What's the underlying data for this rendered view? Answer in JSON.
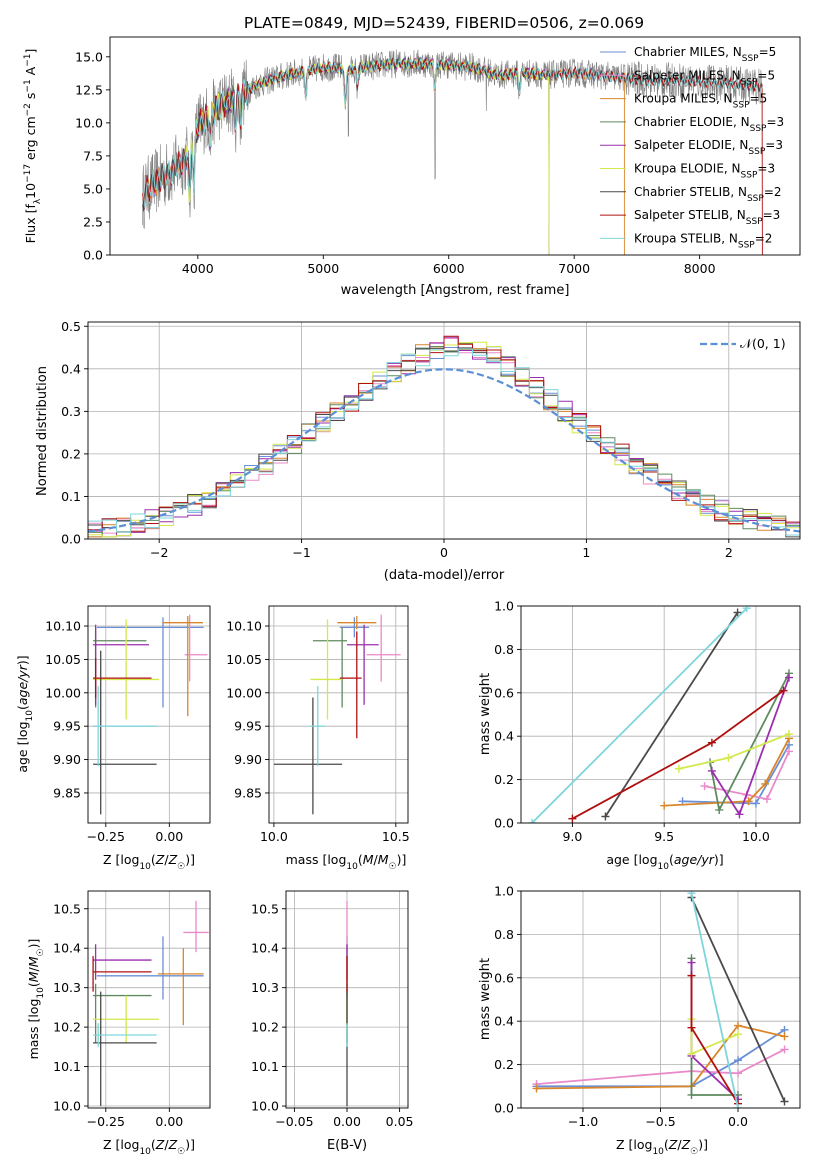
{
  "figure": {
    "title": "PLATE=0849, MJD=52439, FIBERID=0506, z=0.069"
  },
  "colors": {
    "Chabrier MILES": "#6a8fd6",
    "Salpeter MILES": "#e88ac9",
    "Kroupa MILES": "#d9862a",
    "Chabrier ELODIE": "#5f8a5f",
    "Salpeter ELODIE": "#9b2fae",
    "Kroupa ELODIE": "#d4e84a",
    "Chabrier STELIB": "#4a4a4a",
    "Salpeter STELIB": "#b01010",
    "Kroupa STELIB": "#7ed6dc",
    "data": "#808080",
    "gaussian": "#5b8fd6"
  },
  "chart_data": [
    {
      "id": "spectrum",
      "type": "line",
      "title": "PLATE=0849, MJD=52439, FIBERID=0506, z=0.069",
      "xlabel": "wavelength [Angstrom, rest frame]",
      "ylabel": "Flux [f_λ 10^-17 erg cm^-2 s^-1 A^-1]",
      "xlim": [
        3300,
        8800
      ],
      "ylim": [
        0,
        16.5
      ],
      "xticks": [
        4000,
        5000,
        6000,
        7000,
        8000
      ],
      "yticks": [
        0.0,
        2.5,
        5.0,
        7.5,
        10.0,
        12.5,
        15.0
      ],
      "grid": false,
      "legend_position": "top-right",
      "continuum": {
        "x": [
          3550,
          3600,
          3700,
          3800,
          3900,
          4000,
          4100,
          4200,
          4300,
          4400,
          4500,
          4600,
          4700,
          4800,
          4900,
          5000,
          5100,
          5200,
          5300,
          5400,
          5500,
          5600,
          5800,
          6000,
          6200,
          6400,
          6600,
          6800,
          7000,
          7200,
          7400,
          7600,
          7800,
          8000,
          8200,
          8400,
          8500
        ],
        "y": [
          4.2,
          5.0,
          5.8,
          6.4,
          7.2,
          9.8,
          10.6,
          11.4,
          11.8,
          12.5,
          13.0,
          13.3,
          13.6,
          13.8,
          14.0,
          14.2,
          14.2,
          14.0,
          14.2,
          14.3,
          14.4,
          14.5,
          14.5,
          14.4,
          14.2,
          13.6,
          13.8,
          13.6,
          13.8,
          13.6,
          13.4,
          13.2,
          13.2,
          13.1,
          13.0,
          12.8,
          12.8
        ]
      },
      "series": [
        {
          "name": "Chabrier MILES",
          "label": "Chabrier MILES, N_SSP=5"
        },
        {
          "name": "Salpeter MILES",
          "label": "Salpeter MILES, N_SSP=5"
        },
        {
          "name": "Kroupa MILES",
          "label": "Kroupa MILES, N_SSP=5"
        },
        {
          "name": "Chabrier ELODIE",
          "label": "Chabrier ELODIE, N_SSP=3"
        },
        {
          "name": "Salpeter ELODIE",
          "label": "Salpeter ELODIE, N_SSP=3"
        },
        {
          "name": "Kroupa ELODIE",
          "label": "Kroupa ELODIE, N_SSP=3"
        },
        {
          "name": "Chabrier STELIB",
          "label": "Chabrier STELIB, N_SSP=2"
        },
        {
          "name": "Salpeter STELIB",
          "label": "Salpeter STELIB, N_SSP=3"
        },
        {
          "name": "Kroupa STELIB",
          "label": "Kroupa STELIB, N_SSP=2"
        }
      ]
    },
    {
      "id": "residuals",
      "type": "step",
      "xlabel": "(data-model)/error",
      "ylabel": "Normed distribution",
      "xlim": [
        -2.5,
        2.5
      ],
      "ylim": [
        0,
        0.51
      ],
      "xticks": [
        -2,
        -1,
        0,
        1,
        2
      ],
      "yticks": [
        0.0,
        0.1,
        0.2,
        0.3,
        0.4,
        0.5
      ],
      "grid": true,
      "legend_position": "top-right",
      "gaussian_label": "𝒩(0, 1)",
      "bin_width": 0.1,
      "bin_start": -2.5
    },
    {
      "id": "age-vs-Z",
      "type": "errorbar",
      "xlabel": "Z [log10(Z/Z☉)]",
      "ylabel": "age [log10(age/yr)]",
      "xlim": [
        -0.32,
        0.16
      ],
      "ylim": [
        9.805,
        10.13
      ],
      "xticks": [
        -0.25,
        0.0
      ],
      "yticks": [
        9.85,
        9.9,
        9.95,
        10.0,
        10.05,
        10.1
      ],
      "grid": true,
      "points": [
        {
          "series": "Chabrier MILES",
          "x": -0.025,
          "xerr": [
            0.26,
            0.16
          ],
          "y": 10.098,
          "yerr": [
            0.12,
            0.015
          ]
        },
        {
          "series": "Salpeter MILES",
          "x": 0.08,
          "xerr": [
            0.02,
            0.07
          ],
          "y": 10.057,
          "yerr": [
            0.04,
            0.06
          ]
        },
        {
          "series": "Kroupa MILES",
          "x": 0.0725,
          "xerr": [
            0.1,
            0.06
          ],
          "y": 10.105,
          "yerr": [
            0.14,
            0.01
          ]
        },
        {
          "series": "Chabrier ELODIE",
          "x": -0.29,
          "xerr": [
            0.01,
            0.2
          ],
          "y": 10.078,
          "yerr": [
            0.1,
            0.02
          ]
        },
        {
          "series": "Salpeter ELODIE",
          "x": -0.29,
          "xerr": [
            0.01,
            0.21
          ],
          "y": 10.072,
          "yerr": [
            0.09,
            0.03
          ]
        },
        {
          "series": "Kroupa ELODIE",
          "x": -0.17,
          "xerr": [
            0.13,
            0.13
          ],
          "y": 10.02,
          "yerr": [
            0.06,
            0.09
          ]
        },
        {
          "series": "Chabrier STELIB",
          "x": -0.27,
          "xerr": [
            0.03,
            0.22
          ],
          "y": 9.893,
          "yerr": [
            0.075,
            0.17
          ]
        },
        {
          "series": "Salpeter STELIB",
          "x": -0.29,
          "xerr": [
            0.01,
            0.22
          ],
          "y": 10.022,
          "yerr": [
            0.03,
            0.03
          ]
        },
        {
          "series": "Kroupa STELIB",
          "x": -0.28,
          "xerr": [
            0.02,
            0.23
          ],
          "y": 9.95,
          "yerr": [
            0.06,
            0.06
          ]
        }
      ]
    },
    {
      "id": "age-vs-mass",
      "type": "errorbar",
      "xlabel": "mass [log10(M/M☉)]",
      "ylabel": "",
      "xlim": [
        9.98,
        10.55
      ],
      "ylim": [
        9.805,
        10.13
      ],
      "xticks": [
        10.0,
        10.5
      ],
      "yticks": [
        9.85,
        9.9,
        9.95,
        10.0,
        10.05,
        10.1
      ],
      "grid": true,
      "points": [
        {
          "series": "Chabrier MILES",
          "x": 10.33,
          "xerr": [
            0.06,
            0.06
          ],
          "y": 10.098,
          "yerr": [
            0.015,
            0.015
          ]
        },
        {
          "series": "Salpeter MILES",
          "x": 10.44,
          "xerr": [
            0.06,
            0.08
          ],
          "y": 10.057,
          "yerr": [
            0.04,
            0.06
          ]
        },
        {
          "series": "Kroupa MILES",
          "x": 10.34,
          "xerr": [
            0.08,
            0.08
          ],
          "y": 10.105,
          "yerr": [
            0.01,
            0.01
          ]
        },
        {
          "series": "Chabrier ELODIE",
          "x": 10.28,
          "xerr": [
            0.12,
            0.02
          ],
          "y": 10.078,
          "yerr": [
            0.1,
            0.02
          ]
        },
        {
          "series": "Salpeter ELODIE",
          "x": 10.37,
          "xerr": [
            0.07,
            0.06
          ],
          "y": 10.072,
          "yerr": [
            0.09,
            0.03
          ]
        },
        {
          "series": "Kroupa ELODIE",
          "x": 10.22,
          "xerr": [
            0.07,
            0.06
          ],
          "y": 10.02,
          "yerr": [
            0.06,
            0.09
          ]
        },
        {
          "series": "Chabrier STELIB",
          "x": 10.16,
          "xerr": [
            0.16,
            0.12
          ],
          "y": 9.893,
          "yerr": [
            0.075,
            0.1
          ]
        },
        {
          "series": "Salpeter STELIB",
          "x": 10.34,
          "xerr": [
            0.07,
            0.02
          ],
          "y": 10.022,
          "yerr": [
            0.09,
            0.07
          ]
        },
        {
          "series": "Kroupa STELIB",
          "x": 10.18,
          "xerr": [
            0.03,
            0.03
          ],
          "y": 9.95,
          "yerr": [
            0.06,
            0.06
          ]
        }
      ]
    },
    {
      "id": "mass-weight-vs-age",
      "type": "line",
      "xlabel": "age [log10(age/yr)]",
      "ylabel": "mass weight",
      "xlim": [
        8.72,
        10.24
      ],
      "ylim": [
        0,
        1.0
      ],
      "xticks": [
        9.0,
        9.5,
        10.0
      ],
      "yticks": [
        0.0,
        0.2,
        0.4,
        0.6,
        0.8,
        1.0
      ],
      "grid": true,
      "series": [
        {
          "name": "Chabrier MILES",
          "x": [
            9.6,
            10.0,
            10.18
          ],
          "y": [
            0.1,
            0.09,
            0.36
          ]
        },
        {
          "name": "Salpeter MILES",
          "x": [
            9.72,
            9.95,
            10.06,
            10.18
          ],
          "y": [
            0.17,
            0.13,
            0.11,
            0.33
          ]
        },
        {
          "name": "Kroupa MILES",
          "x": [
            9.5,
            9.96,
            10.05,
            10.18
          ],
          "y": [
            0.08,
            0.1,
            0.18,
            0.39
          ]
        },
        {
          "name": "Chabrier ELODIE",
          "x": [
            9.75,
            9.8,
            10.18
          ],
          "y": [
            0.28,
            0.06,
            0.69
          ]
        },
        {
          "name": "Salpeter ELODIE",
          "x": [
            9.76,
            9.91,
            10.18
          ],
          "y": [
            0.24,
            0.04,
            0.67
          ]
        },
        {
          "name": "Kroupa ELODIE",
          "x": [
            9.58,
            9.85,
            10.18
          ],
          "y": [
            0.25,
            0.3,
            0.41
          ]
        },
        {
          "name": "Chabrier STELIB",
          "x": [
            9.18,
            9.9
          ],
          "y": [
            0.03,
            0.97
          ]
        },
        {
          "name": "Salpeter STELIB",
          "x": [
            9.0,
            9.76,
            10.15
          ],
          "y": [
            0.02,
            0.37,
            0.61
          ]
        },
        {
          "name": "Kroupa STELIB",
          "x": [
            8.78,
            9.95
          ],
          "y": [
            0.0,
            0.99
          ]
        }
      ]
    },
    {
      "id": "mass-vs-Z",
      "type": "errorbar",
      "xlabel": "Z [log10(Z/Z☉)]",
      "ylabel": "mass [log10(M/M☉)]",
      "xlim": [
        -0.32,
        0.16
      ],
      "ylim": [
        9.995,
        10.545
      ],
      "xticks": [
        -0.25,
        0.0
      ],
      "yticks": [
        10.0,
        10.1,
        10.2,
        10.3,
        10.4,
        10.5
      ],
      "grid": true,
      "points": [
        {
          "series": "Chabrier MILES",
          "x": -0.025,
          "xerr": [
            0.26,
            0.16
          ],
          "y": 10.33,
          "yerr": [
            0.06,
            0.1
          ]
        },
        {
          "series": "Salpeter MILES",
          "x": 0.105,
          "xerr": [
            0.05,
            0.05
          ],
          "y": 10.44,
          "yerr": [
            0.05,
            0.08
          ]
        },
        {
          "series": "Kroupa MILES",
          "x": 0.055,
          "xerr": [
            0.1,
            0.08
          ],
          "y": 10.335,
          "yerr": [
            0.13,
            0.065
          ]
        },
        {
          "series": "Chabrier ELODIE",
          "x": -0.29,
          "xerr": [
            0.01,
            0.22
          ],
          "y": 10.28,
          "yerr": [
            0.12,
            0.03
          ]
        },
        {
          "series": "Salpeter ELODIE",
          "x": -0.29,
          "xerr": [
            0.01,
            0.22
          ],
          "y": 10.37,
          "yerr": [
            0.05,
            0.04
          ]
        },
        {
          "series": "Kroupa ELODIE",
          "x": -0.17,
          "xerr": [
            0.13,
            0.13
          ],
          "y": 10.22,
          "yerr": [
            0.06,
            0.06
          ]
        },
        {
          "series": "Chabrier STELIB",
          "x": -0.27,
          "xerr": [
            0.03,
            0.22
          ],
          "y": 10.16,
          "yerr": [
            0.16,
            0.13
          ]
        },
        {
          "series": "Salpeter STELIB",
          "x": -0.3,
          "xerr": [
            0.0,
            0.23
          ],
          "y": 10.34,
          "yerr": [
            0.05,
            0.04
          ]
        },
        {
          "series": "Kroupa STELIB",
          "x": -0.28,
          "xerr": [
            0.02,
            0.23
          ],
          "y": 10.18,
          "yerr": [
            0.03,
            0.03
          ]
        }
      ]
    },
    {
      "id": "mass-vs-EBV",
      "type": "errorbar",
      "xlabel": "E(B-V)",
      "ylabel": "",
      "xlim": [
        -0.058,
        0.058
      ],
      "ylim": [
        9.995,
        10.545
      ],
      "xticks": [
        -0.05,
        0.0,
        0.05
      ],
      "yticks": [
        10.0,
        10.1,
        10.2,
        10.3,
        10.4,
        10.5
      ],
      "grid": true,
      "points": [
        {
          "series": "Chabrier MILES",
          "x": 0.0,
          "xerr": [
            0,
            0
          ],
          "y": 10.33,
          "yerr": [
            0.06,
            0.1
          ]
        },
        {
          "series": "Salpeter MILES",
          "x": 0.0,
          "xerr": [
            0,
            0
          ],
          "y": 10.44,
          "yerr": [
            0.05,
            0.08
          ]
        },
        {
          "series": "Kroupa MILES",
          "x": 0.0,
          "xerr": [
            0,
            0
          ],
          "y": 10.335,
          "yerr": [
            0.13,
            0.065
          ]
        },
        {
          "series": "Chabrier ELODIE",
          "x": 0.0,
          "xerr": [
            0,
            0
          ],
          "y": 10.28,
          "yerr": [
            0.12,
            0.03
          ]
        },
        {
          "series": "Salpeter ELODIE",
          "x": 0.0,
          "xerr": [
            0,
            0
          ],
          "y": 10.37,
          "yerr": [
            0.05,
            0.04
          ]
        },
        {
          "series": "Kroupa ELODIE",
          "x": 0.0,
          "xerr": [
            0,
            0
          ],
          "y": 10.22,
          "yerr": [
            0.06,
            0.06
          ]
        },
        {
          "series": "Chabrier STELIB",
          "x": 0.0,
          "xerr": [
            0,
            0
          ],
          "y": 10.16,
          "yerr": [
            0.16,
            0.13
          ]
        },
        {
          "series": "Salpeter STELIB",
          "x": 0.0,
          "xerr": [
            0,
            0
          ],
          "y": 10.34,
          "yerr": [
            0.05,
            0.04
          ]
        },
        {
          "series": "Kroupa STELIB",
          "x": 0.0,
          "xerr": [
            0,
            0
          ],
          "y": 10.18,
          "yerr": [
            0.03,
            0.03
          ]
        }
      ]
    },
    {
      "id": "mass-weight-vs-Z",
      "type": "line",
      "xlabel": "Z [log10(Z/Z☉)]",
      "ylabel": "mass weight",
      "xlim": [
        -1.4,
        0.4
      ],
      "ylim": [
        0,
        1.0
      ],
      "xticks": [
        -1.0,
        -0.5,
        0.0
      ],
      "yticks": [
        0.0,
        0.2,
        0.4,
        0.6,
        0.8,
        1.0
      ],
      "grid": true,
      "series": [
        {
          "name": "Chabrier MILES",
          "x": [
            -1.3,
            -0.3,
            0.0,
            0.3
          ],
          "y": [
            0.1,
            0.1,
            0.22,
            0.36
          ]
        },
        {
          "name": "Salpeter MILES",
          "x": [
            -1.3,
            -0.3,
            0.0,
            0.3
          ],
          "y": [
            0.11,
            0.17,
            0.16,
            0.27
          ]
        },
        {
          "name": "Kroupa MILES",
          "x": [
            -1.3,
            -0.3,
            0.0,
            0.3
          ],
          "y": [
            0.09,
            0.1,
            0.38,
            0.33
          ]
        },
        {
          "name": "Chabrier ELODIE",
          "x": [
            -0.3,
            -0.3,
            0.0
          ],
          "y": [
            0.69,
            0.06,
            0.06
          ]
        },
        {
          "name": "Salpeter ELODIE",
          "x": [
            -0.3,
            -0.3,
            0.0
          ],
          "y": [
            0.67,
            0.24,
            0.04
          ]
        },
        {
          "name": "Kroupa ELODIE",
          "x": [
            -0.3,
            -0.3,
            0.0
          ],
          "y": [
            0.41,
            0.25,
            0.34
          ]
        },
        {
          "name": "Chabrier STELIB",
          "x": [
            -0.3,
            0.3
          ],
          "y": [
            0.97,
            0.03
          ]
        },
        {
          "name": "Salpeter STELIB",
          "x": [
            -0.3,
            -0.3,
            0.0
          ],
          "y": [
            0.61,
            0.37,
            0.02
          ]
        },
        {
          "name": "Kroupa STELIB",
          "x": [
            -0.3,
            0.0
          ],
          "y": [
            0.99,
            0.0
          ]
        }
      ]
    }
  ]
}
